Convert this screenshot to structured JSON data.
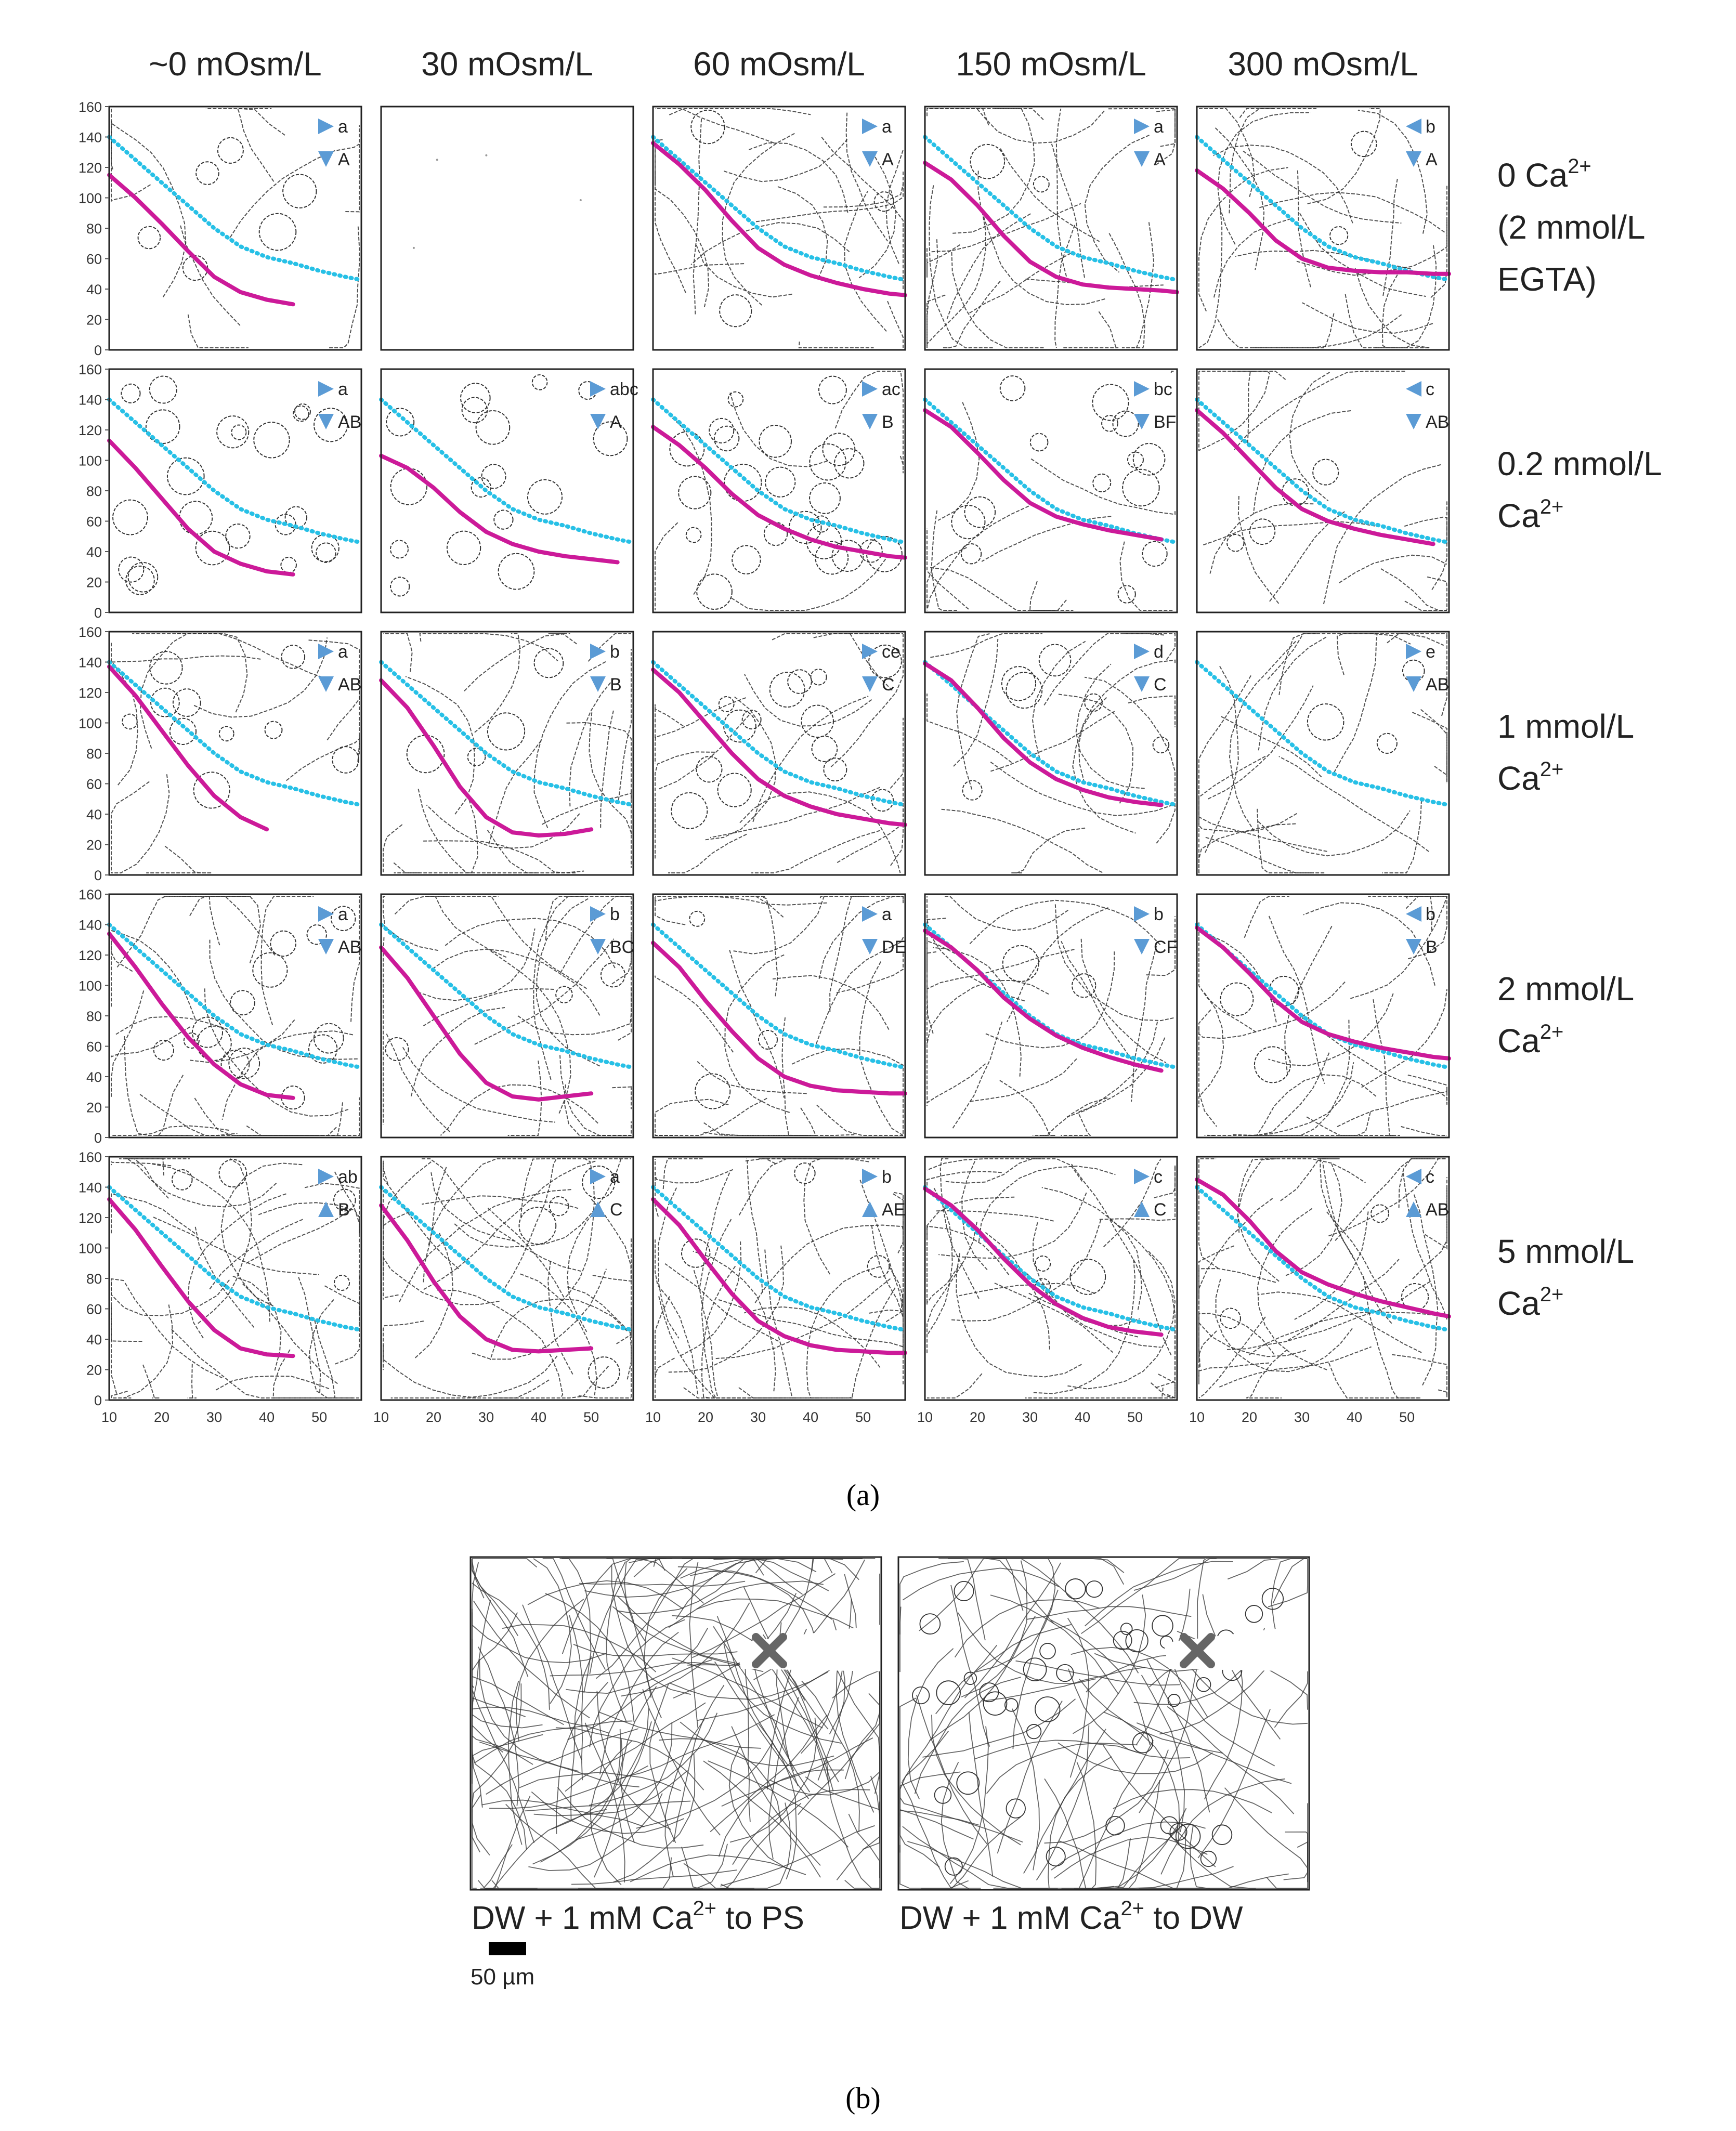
{
  "chart_data": {
    "type": "line",
    "title": "",
    "panel_a_label": "a",
    "panel_b_label": "b",
    "column_headers": [
      "~0 mOsm/L",
      "30 mOsm/L",
      "60 mOsm/L",
      "150 mOsm/L",
      "300 mOsm/L"
    ],
    "row_labels": [
      {
        "lines": [
          [
            "0 Ca",
            "2+"
          ],
          [
            "(2 mmol/L",
            ""
          ],
          [
            "EGTA)",
            ""
          ]
        ]
      },
      {
        "lines": [
          [
            "0.2 mmol/L",
            ""
          ],
          [
            "Ca",
            "2+"
          ]
        ]
      },
      {
        "lines": [
          [
            "1 mmol/L",
            ""
          ],
          [
            "Ca",
            "2+"
          ]
        ]
      },
      {
        "lines": [
          [
            "2 mmol/L",
            ""
          ],
          [
            "Ca",
            "2+"
          ]
        ]
      },
      {
        "lines": [
          [
            "5 mmol/L",
            ""
          ],
          [
            "Ca",
            "2+"
          ]
        ]
      }
    ],
    "x_ticks": [
      "10",
      "20",
      "30",
      "40",
      "50"
    ],
    "y_ticks": [
      "0",
      "20",
      "40",
      "60",
      "80",
      "100",
      "120",
      "140",
      "160"
    ],
    "xlim": [
      10,
      58
    ],
    "ylim": [
      0,
      160
    ],
    "series_colors": {
      "measured": "#cc1a99",
      "reference": "#27c0e6",
      "marker": "#5b9bd5",
      "tracks": "#333333"
    },
    "reference_curve": {
      "name": "reference (dotted)",
      "x": [
        10,
        15,
        20,
        25,
        30,
        35,
        40,
        45,
        50,
        55,
        58
      ],
      "y": [
        140,
        125,
        110,
        95,
        80,
        68,
        61,
        57,
        52,
        48,
        46
      ]
    },
    "panels": [
      [
        {
          "curve": {
            "x": [
              10,
              15,
              20,
              25,
              30,
              35,
              40,
              45
            ],
            "y": [
              115,
              100,
              83,
              65,
              48,
              38,
              33,
              30
            ]
          },
          "letters": [
            "a",
            "A"
          ],
          "markers": [
            "right",
            "down"
          ],
          "density": 10,
          "loops": 6
        },
        {
          "curve": null,
          "letters": [],
          "markers": [],
          "density": 0,
          "loops": 0,
          "ref": false
        },
        {
          "curve": {
            "x": [
              10,
              15,
              20,
              25,
              30,
              35,
              40,
              45,
              50,
              55,
              58
            ],
            "y": [
              136,
              122,
              105,
              85,
              67,
              56,
              49,
              44,
              40,
              37,
              36
            ]
          },
          "letters": [
            "a",
            "A"
          ],
          "markers": [
            "right",
            "down"
          ],
          "density": 22,
          "loops": 3
        },
        {
          "curve": {
            "x": [
              10,
              15,
              20,
              25,
              30,
              35,
              40,
              45,
              50,
              55,
              58
            ],
            "y": [
              123,
              112,
              95,
              75,
              58,
              48,
              43,
              41,
              40,
              39,
              38
            ]
          },
          "letters": [
            "a",
            "A"
          ],
          "markers": [
            "right",
            "down"
          ],
          "density": 28,
          "loops": 2
        },
        {
          "curve": {
            "x": [
              10,
              15,
              20,
              25,
              30,
              35,
              40,
              45,
              50,
              55,
              58
            ],
            "y": [
              118,
              106,
              90,
              72,
              60,
              54,
              52,
              51,
              51,
              50,
              50
            ]
          },
          "letters": [
            "b",
            "A"
          ],
          "markers": [
            "left",
            "down"
          ],
          "density": 26,
          "loops": 2
        }
      ],
      [
        {
          "curve": {
            "x": [
              10,
              15,
              20,
              25,
              30,
              35,
              40,
              45
            ],
            "y": [
              113,
              95,
              75,
              55,
              40,
              32,
              27,
              25
            ]
          },
          "letters": [
            "a",
            "AB"
          ],
          "markers": [
            "right",
            "down"
          ],
          "density": 0,
          "loops": 22
        },
        {
          "curve": {
            "x": [
              10,
              15,
              20,
              25,
              30,
              35,
              40,
              45,
              50,
              55
            ],
            "y": [
              103,
              95,
              82,
              66,
              53,
              45,
              40,
              37,
              35,
              33
            ]
          },
          "letters": [
            "abc",
            "A"
          ],
          "markers": [
            "right",
            "down"
          ],
          "density": 0,
          "loops": 16
        },
        {
          "curve": {
            "x": [
              10,
              15,
              20,
              25,
              30,
              35,
              40,
              45,
              50,
              55,
              58
            ],
            "y": [
              122,
              110,
              95,
              78,
              64,
              55,
              48,
              43,
              40,
              37,
              36
            ]
          },
          "letters": [
            "ac",
            "B"
          ],
          "markers": [
            "right",
            "down"
          ],
          "density": 6,
          "loops": 24
        },
        {
          "curve": {
            "x": [
              10,
              15,
              20,
              25,
              30,
              35,
              40,
              45,
              50,
              55
            ],
            "y": [
              133,
              122,
              105,
              87,
              72,
              63,
              58,
              54,
              51,
              48
            ]
          },
          "letters": [
            "bc",
            "BF"
          ],
          "markers": [
            "right",
            "down"
          ],
          "density": 12,
          "loops": 14
        },
        {
          "curve": {
            "x": [
              10,
              15,
              20,
              25,
              30,
              35,
              40,
              45,
              50,
              55
            ],
            "y": [
              133,
              118,
              100,
              82,
              68,
              60,
              55,
              51,
              48,
              45
            ]
          },
          "letters": [
            "c",
            "AB"
          ],
          "markers": [
            "left",
            "down"
          ],
          "density": 18,
          "loops": 4
        }
      ],
      [
        {
          "curve": {
            "x": [
              10,
              15,
              20,
              25,
              30,
              35,
              40
            ],
            "y": [
              137,
              118,
              95,
              72,
              52,
              38,
              30
            ]
          },
          "letters": [
            "a",
            "AB"
          ],
          "markers": [
            "right",
            "down"
          ],
          "density": 12,
          "loops": 10
        },
        {
          "curve": {
            "x": [
              10,
              15,
              20,
              25,
              30,
              35,
              40,
              45,
              50
            ],
            "y": [
              128,
              110,
              85,
              58,
              38,
              28,
              26,
              27,
              30
            ]
          },
          "letters": [
            "b",
            "B"
          ],
          "markers": [
            "right",
            "down"
          ],
          "density": 22,
          "loops": 4
        },
        {
          "curve": {
            "x": [
              10,
              15,
              20,
              25,
              30,
              35,
              40,
              45,
              50,
              55,
              58
            ],
            "y": [
              135,
              120,
              100,
              80,
              63,
              52,
              45,
              40,
              37,
              34,
              33
            ]
          },
          "letters": [
            "ce",
            "C"
          ],
          "markers": [
            "right",
            "down"
          ],
          "density": 18,
          "loops": 14
        },
        {
          "curve": {
            "x": [
              10,
              15,
              20,
              25,
              30,
              35,
              40,
              45,
              50,
              55
            ],
            "y": [
              139,
              128,
              110,
              90,
              74,
              63,
              56,
              51,
              48,
              46
            ]
          },
          "letters": [
            "d",
            "C"
          ],
          "markers": [
            "right",
            "down"
          ],
          "density": 18,
          "loops": 6
        },
        {
          "curve": null,
          "letters": [
            "e",
            "AB"
          ],
          "markers": [
            "right",
            "down"
          ],
          "density": 24,
          "loops": 3,
          "ref_only": true
        }
      ],
      [
        {
          "curve": {
            "x": [
              10,
              15,
              20,
              25,
              30,
              35,
              40,
              45
            ],
            "y": [
              134,
              112,
              88,
              66,
              48,
              35,
              28,
              26
            ]
          },
          "letters": [
            "a",
            "AB"
          ],
          "markers": [
            "right",
            "down"
          ],
          "density": 24,
          "loops": 14
        },
        {
          "curve": {
            "x": [
              10,
              15,
              20,
              25,
              30,
              35,
              40,
              45,
              50
            ],
            "y": [
              125,
              105,
              80,
              55,
              36,
              27,
              25,
              27,
              29
            ]
          },
          "letters": [
            "b",
            "BC"
          ],
          "markers": [
            "right",
            "down"
          ],
          "density": 26,
          "loops": 3
        },
        {
          "curve": {
            "x": [
              10,
              15,
              20,
              25,
              30,
              35,
              40,
              45,
              50,
              55,
              58
            ],
            "y": [
              128,
              112,
              90,
              70,
              52,
              40,
              34,
              31,
              30,
              29,
              29
            ]
          },
          "letters": [
            "a",
            "DE"
          ],
          "markers": [
            "right",
            "down"
          ],
          "density": 24,
          "loops": 3
        },
        {
          "curve": {
            "x": [
              10,
              15,
              20,
              25,
              30,
              35,
              40,
              45,
              50,
              55
            ],
            "y": [
              136,
              125,
              110,
              92,
              78,
              67,
              59,
              53,
              48,
              44
            ]
          },
          "letters": [
            "b",
            "CF"
          ],
          "markers": [
            "right",
            "down"
          ],
          "density": 24,
          "loops": 2
        },
        {
          "curve": {
            "x": [
              10,
              15,
              20,
              25,
              30,
              35,
              40,
              45,
              50,
              55,
              58
            ],
            "y": [
              138,
              125,
              108,
              90,
              76,
              68,
              63,
              59,
              56,
              53,
              52
            ]
          },
          "letters": [
            "b",
            "B"
          ],
          "markers": [
            "left",
            "down"
          ],
          "density": 28,
          "loops": 3
        }
      ],
      [
        {
          "curve": {
            "x": [
              10,
              15,
              20,
              25,
              30,
              35,
              40,
              45
            ],
            "y": [
              132,
              112,
              88,
              65,
              46,
              34,
              30,
              29
            ]
          },
          "letters": [
            "ab",
            "B"
          ],
          "markers": [
            "right",
            "up"
          ],
          "density": 34,
          "loops": 4
        },
        {
          "curve": {
            "x": [
              10,
              15,
              20,
              25,
              30,
              35,
              40,
              45,
              50
            ],
            "y": [
              128,
              105,
              78,
              55,
              40,
              33,
              32,
              33,
              34
            ]
          },
          "letters": [
            "a",
            "C"
          ],
          "markers": [
            "right",
            "up"
          ],
          "density": 34,
          "loops": 4
        },
        {
          "curve": {
            "x": [
              10,
              15,
              20,
              25,
              30,
              35,
              40,
              45,
              50,
              55,
              58
            ],
            "y": [
              132,
              115,
              92,
              70,
              52,
              42,
              36,
              33,
              32,
              31,
              31
            ]
          },
          "letters": [
            "b",
            "AE"
          ],
          "markers": [
            "right",
            "up"
          ],
          "density": 38,
          "loops": 3
        },
        {
          "curve": {
            "x": [
              10,
              15,
              20,
              25,
              30,
              35,
              40,
              45,
              50,
              55
            ],
            "y": [
              139,
              128,
              112,
              93,
              76,
              63,
              54,
              48,
              45,
              43
            ]
          },
          "letters": [
            "c",
            "C"
          ],
          "markers": [
            "right",
            "up"
          ],
          "density": 34,
          "loops": 3
        },
        {
          "curve": {
            "x": [
              10,
              15,
              20,
              25,
              30,
              35,
              40,
              45,
              50,
              55,
              58
            ],
            "y": [
              145,
              135,
              118,
              98,
              84,
              76,
              70,
              65,
              61,
              57,
              55
            ]
          },
          "letters": [
            "c",
            "AB"
          ],
          "markers": [
            "left",
            "up"
          ],
          "density": 36,
          "loops": 3
        }
      ]
    ],
    "panel_b": {
      "left_caption": [
        "DW + 1 mM Ca",
        "2+",
        " to PS"
      ],
      "right_caption": [
        "DW + 1 mM Ca",
        "2+",
        " to DW"
      ],
      "scale_bar_label": "50 µm",
      "left_density": 180,
      "right_density": 110,
      "right_loops": 40
    }
  }
}
